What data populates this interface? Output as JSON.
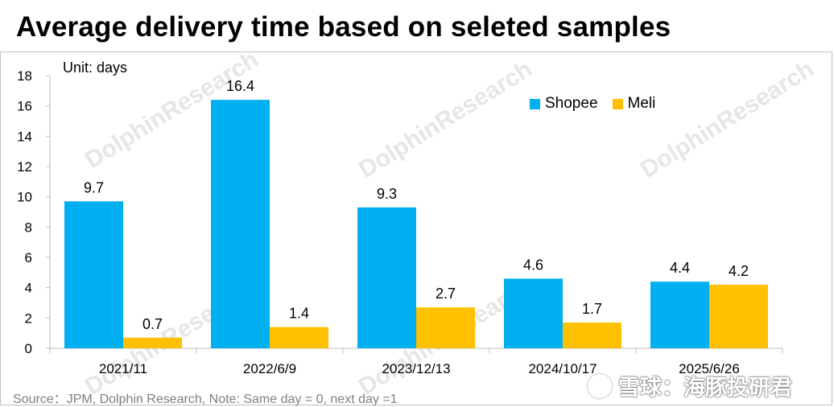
{
  "title": "Average delivery time based on seleted samples",
  "unit_label": "Unit: days",
  "source_note": "Source：JPM, Dolphin Research, Note: Same day = 0, next day =1",
  "brand_watermark": "雪球：海豚投研君",
  "watermark_text": "DolphinResearch",
  "colors": {
    "shopee": "#00B0F0",
    "meli": "#FFC000",
    "axis": "#bfbfbf",
    "text": "#000000"
  },
  "chart_data": {
    "type": "bar",
    "title": "Average delivery time based on seleted samples",
    "xlabel": "",
    "ylabel": "Unit: days",
    "categories": [
      "2021/11",
      "2022/6/9",
      "2023/12/13",
      "2024/10/17",
      "2025/6/26"
    ],
    "series": [
      {
        "name": "Shopee",
        "values": [
          9.7,
          16.4,
          9.3,
          4.6,
          4.4
        ]
      },
      {
        "name": "Meli",
        "values": [
          0.7,
          1.4,
          2.7,
          1.7,
          4.2
        ]
      }
    ],
    "ylim": [
      0,
      18
    ],
    "yticks": [
      0,
      2,
      4,
      6,
      8,
      10,
      12,
      14,
      16,
      18
    ],
    "grid": false,
    "legend": "top-right",
    "data_labels": true
  }
}
